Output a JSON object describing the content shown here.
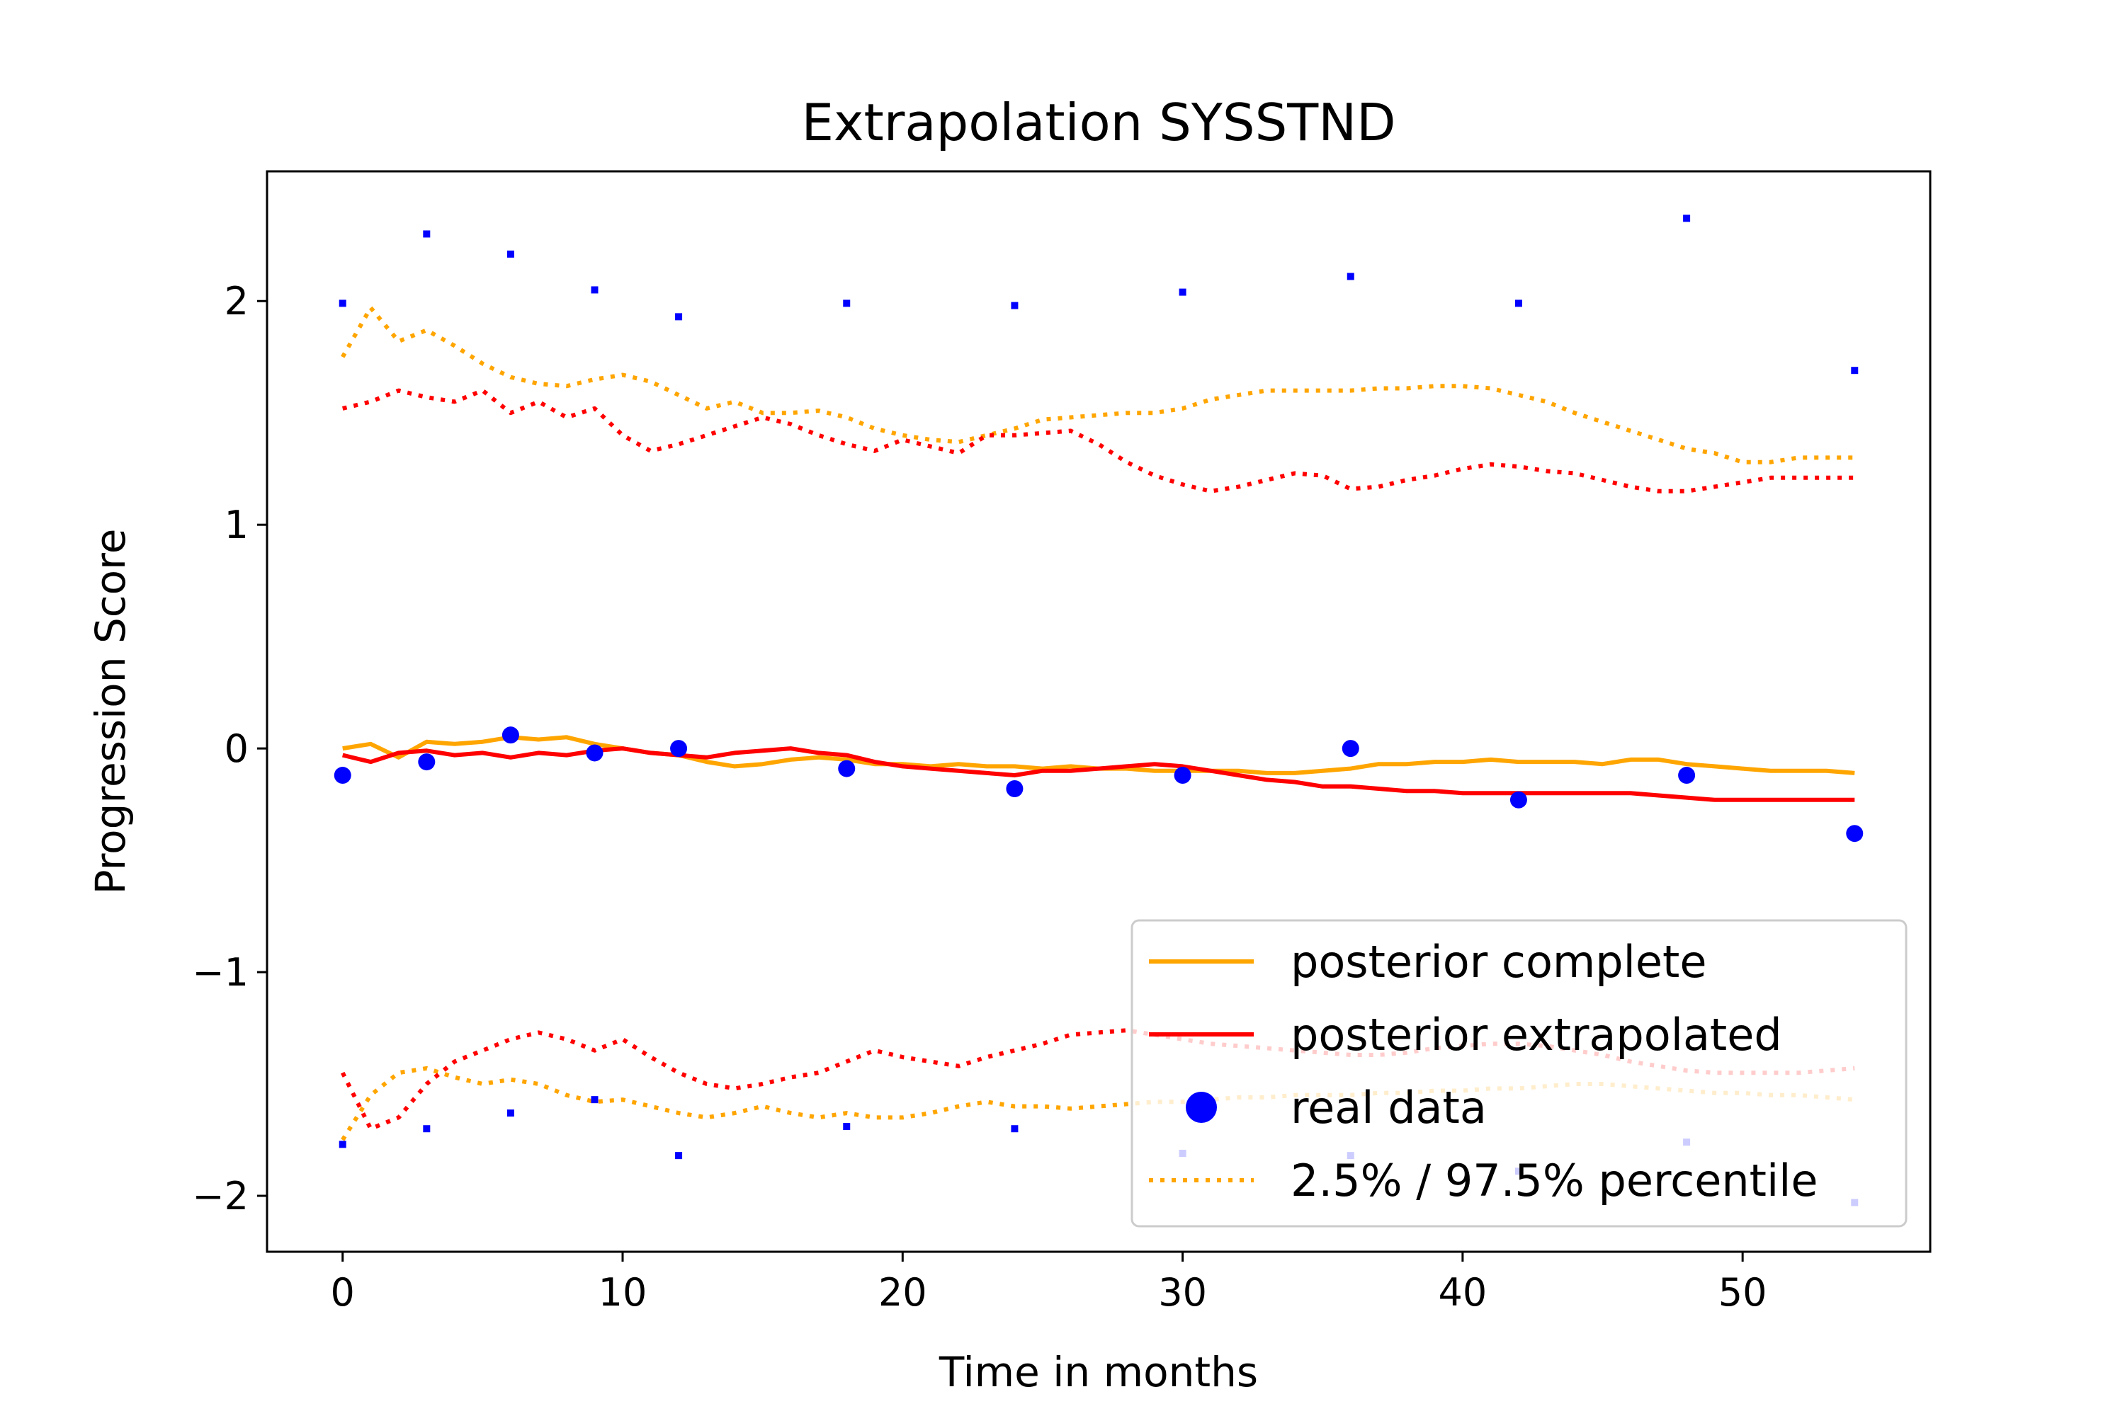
{
  "chart_data": {
    "type": "line",
    "title": "Extrapolation SYSSTND",
    "xlabel": "Time in months",
    "ylabel": "Progression Score",
    "xlim": [
      -2.7,
      56.7
    ],
    "ylim": [
      -2.25,
      2.58
    ],
    "xticks": [
      0,
      10,
      20,
      30,
      40,
      50
    ],
    "yticks": [
      -2,
      -1,
      0,
      1,
      2
    ],
    "ytick_labels": [
      "−2",
      "−1",
      "0",
      "1",
      "2"
    ],
    "grid": false,
    "legend_position": "lower-right",
    "legend": [
      {
        "label": "posterior complete",
        "marker": "solid-line",
        "color": "#ffa500"
      },
      {
        "label": "posterior extrapolated",
        "marker": "solid-line",
        "color": "#ff0000"
      },
      {
        "label": "real data",
        "marker": "dot",
        "color": "#0000ff"
      },
      {
        "label": "2.5% / 97.5% percentile",
        "marker": "dotted-line",
        "color": "#ffa500"
      }
    ],
    "series": [
      {
        "name": "posterior complete",
        "color": "#ffa500",
        "style": "solid",
        "x": [
          0,
          1,
          2,
          3,
          4,
          5,
          6,
          7,
          8,
          9,
          10,
          11,
          12,
          13,
          14,
          15,
          16,
          17,
          18,
          19,
          20,
          21,
          22,
          23,
          24,
          25,
          26,
          27,
          28,
          29,
          30,
          31,
          32,
          33,
          34,
          35,
          36,
          37,
          38,
          39,
          40,
          41,
          42,
          43,
          44,
          45,
          46,
          47,
          48,
          49,
          50,
          51,
          52,
          53,
          54
        ],
        "y": [
          0.0,
          0.02,
          -0.04,
          0.03,
          0.02,
          0.03,
          0.05,
          0.04,
          0.05,
          0.02,
          0.0,
          -0.02,
          -0.03,
          -0.06,
          -0.08,
          -0.07,
          -0.05,
          -0.04,
          -0.05,
          -0.07,
          -0.07,
          -0.08,
          -0.07,
          -0.08,
          -0.08,
          -0.09,
          -0.08,
          -0.09,
          -0.09,
          -0.1,
          -0.1,
          -0.1,
          -0.1,
          -0.11,
          -0.11,
          -0.1,
          -0.09,
          -0.07,
          -0.07,
          -0.06,
          -0.06,
          -0.05,
          -0.06,
          -0.06,
          -0.06,
          -0.07,
          -0.05,
          -0.05,
          -0.07,
          -0.08,
          -0.09,
          -0.1,
          -0.1,
          -0.1,
          -0.11
        ]
      },
      {
        "name": "posterior extrapolated",
        "color": "#ff0000",
        "style": "solid",
        "x": [
          0,
          1,
          2,
          3,
          4,
          5,
          6,
          7,
          8,
          9,
          10,
          11,
          12,
          13,
          14,
          15,
          16,
          17,
          18,
          19,
          20,
          21,
          22,
          23,
          24,
          25,
          26,
          27,
          28,
          29,
          30,
          31,
          32,
          33,
          34,
          35,
          36,
          37,
          38,
          39,
          40,
          41,
          42,
          43,
          44,
          45,
          46,
          47,
          48,
          49,
          50,
          51,
          52,
          53,
          54
        ],
        "y": [
          -0.03,
          -0.06,
          -0.02,
          -0.01,
          -0.03,
          -0.02,
          -0.04,
          -0.02,
          -0.03,
          -0.01,
          0.0,
          -0.02,
          -0.03,
          -0.04,
          -0.02,
          -0.01,
          0.0,
          -0.02,
          -0.03,
          -0.06,
          -0.08,
          -0.09,
          -0.1,
          -0.11,
          -0.12,
          -0.1,
          -0.1,
          -0.09,
          -0.08,
          -0.07,
          -0.08,
          -0.1,
          -0.12,
          -0.14,
          -0.15,
          -0.17,
          -0.17,
          -0.18,
          -0.19,
          -0.19,
          -0.2,
          -0.2,
          -0.2,
          -0.2,
          -0.2,
          -0.2,
          -0.2,
          -0.21,
          -0.22,
          -0.23,
          -0.23,
          -0.23,
          -0.23,
          -0.23,
          -0.23
        ]
      },
      {
        "name": "",
        "color": "#ffa500",
        "style": "dotted",
        "x": [
          0,
          1,
          2,
          3,
          4,
          5,
          6,
          7,
          8,
          9,
          10,
          11,
          12,
          13,
          14,
          15,
          16,
          17,
          18,
          19,
          20,
          21,
          22,
          23,
          24,
          25,
          26,
          27,
          28,
          29,
          30,
          31,
          32,
          33,
          34,
          35,
          36,
          37,
          38,
          39,
          40,
          41,
          42,
          43,
          44,
          45,
          46,
          47,
          48,
          49,
          50,
          51,
          52,
          53,
          54
        ],
        "y": [
          1.75,
          1.97,
          1.82,
          1.87,
          1.8,
          1.72,
          1.66,
          1.63,
          1.62,
          1.65,
          1.67,
          1.64,
          1.58,
          1.52,
          1.55,
          1.5,
          1.5,
          1.51,
          1.48,
          1.43,
          1.4,
          1.38,
          1.37,
          1.4,
          1.43,
          1.47,
          1.48,
          1.49,
          1.5,
          1.5,
          1.52,
          1.56,
          1.58,
          1.6,
          1.6,
          1.6,
          1.6,
          1.61,
          1.61,
          1.62,
          1.62,
          1.61,
          1.58,
          1.55,
          1.5,
          1.46,
          1.42,
          1.38,
          1.34,
          1.32,
          1.28,
          1.28,
          1.3,
          1.3,
          1.3
        ]
      },
      {
        "name": "",
        "color": "#ff0000",
        "style": "dotted",
        "x": [
          0,
          1,
          2,
          3,
          4,
          5,
          6,
          7,
          8,
          9,
          10,
          11,
          12,
          13,
          14,
          15,
          16,
          17,
          18,
          19,
          20,
          21,
          22,
          23,
          24,
          25,
          26,
          27,
          28,
          29,
          30,
          31,
          32,
          33,
          34,
          35,
          36,
          37,
          38,
          39,
          40,
          41,
          42,
          43,
          44,
          45,
          46,
          47,
          48,
          49,
          50,
          51,
          52,
          53,
          54
        ],
        "y": [
          1.52,
          1.55,
          1.6,
          1.57,
          1.55,
          1.6,
          1.5,
          1.55,
          1.48,
          1.52,
          1.4,
          1.33,
          1.36,
          1.4,
          1.44,
          1.48,
          1.45,
          1.4,
          1.36,
          1.33,
          1.38,
          1.35,
          1.32,
          1.4,
          1.4,
          1.41,
          1.42,
          1.36,
          1.28,
          1.22,
          1.18,
          1.15,
          1.17,
          1.2,
          1.23,
          1.22,
          1.16,
          1.17,
          1.2,
          1.22,
          1.25,
          1.27,
          1.26,
          1.24,
          1.23,
          1.2,
          1.17,
          1.15,
          1.15,
          1.17,
          1.19,
          1.21,
          1.21,
          1.21,
          1.21
        ]
      },
      {
        "name": "",
        "color": "#ffa500",
        "style": "dotted",
        "x": [
          0,
          1,
          2,
          3,
          4,
          5,
          6,
          7,
          8,
          9,
          10,
          11,
          12,
          13,
          14,
          15,
          16,
          17,
          18,
          19,
          20,
          21,
          22,
          23,
          24,
          25,
          26,
          27,
          28,
          29,
          30,
          31,
          32,
          33,
          34,
          35,
          36,
          37,
          38,
          39,
          40,
          41,
          42,
          43,
          44,
          45,
          46,
          47,
          48,
          49,
          50,
          51,
          52,
          53,
          54
        ],
        "y": [
          -1.75,
          -1.55,
          -1.45,
          -1.43,
          -1.47,
          -1.5,
          -1.48,
          -1.5,
          -1.55,
          -1.58,
          -1.57,
          -1.6,
          -1.63,
          -1.65,
          -1.63,
          -1.6,
          -1.63,
          -1.65,
          -1.63,
          -1.65,
          -1.65,
          -1.63,
          -1.6,
          -1.58,
          -1.6,
          -1.6,
          -1.61,
          -1.6,
          -1.59,
          -1.58,
          -1.58,
          -1.57,
          -1.56,
          -1.56,
          -1.55,
          -1.55,
          -1.55,
          -1.54,
          -1.54,
          -1.53,
          -1.53,
          -1.52,
          -1.52,
          -1.51,
          -1.5,
          -1.5,
          -1.51,
          -1.52,
          -1.53,
          -1.54,
          -1.54,
          -1.55,
          -1.55,
          -1.56,
          -1.57
        ]
      },
      {
        "name": "",
        "color": "#ff0000",
        "style": "dotted",
        "x": [
          0,
          1,
          2,
          3,
          4,
          5,
          6,
          7,
          8,
          9,
          10,
          11,
          12,
          13,
          14,
          15,
          16,
          17,
          18,
          19,
          20,
          21,
          22,
          23,
          24,
          25,
          26,
          27,
          28,
          29,
          30,
          31,
          32,
          33,
          34,
          35,
          36,
          37,
          38,
          39,
          40,
          41,
          42,
          43,
          44,
          45,
          46,
          47,
          48,
          49,
          50,
          51,
          52,
          53,
          54
        ],
        "y": [
          -1.45,
          -1.7,
          -1.65,
          -1.5,
          -1.4,
          -1.35,
          -1.3,
          -1.27,
          -1.3,
          -1.35,
          -1.3,
          -1.38,
          -1.45,
          -1.5,
          -1.52,
          -1.5,
          -1.47,
          -1.45,
          -1.4,
          -1.35,
          -1.38,
          -1.4,
          -1.42,
          -1.38,
          -1.35,
          -1.32,
          -1.28,
          -1.27,
          -1.26,
          -1.28,
          -1.3,
          -1.32,
          -1.33,
          -1.34,
          -1.35,
          -1.36,
          -1.37,
          -1.37,
          -1.36,
          -1.34,
          -1.33,
          -1.32,
          -1.32,
          -1.33,
          -1.35,
          -1.37,
          -1.4,
          -1.42,
          -1.44,
          -1.45,
          -1.45,
          -1.45,
          -1.45,
          -1.44,
          -1.43
        ]
      }
    ],
    "real_data": {
      "name": "real data",
      "color": "#0000ff",
      "x": [
        0,
        3,
        6,
        9,
        12,
        18,
        24,
        30,
        36,
        42,
        48,
        54
      ],
      "y": [
        -0.12,
        -0.06,
        0.06,
        -0.02,
        0.0,
        -0.09,
        -0.18,
        -0.12,
        0.0,
        -0.23,
        -0.12,
        -0.38
      ],
      "upper": [
        1.99,
        2.3,
        2.21,
        2.05,
        1.93,
        1.99,
        1.98,
        2.04,
        2.11,
        1.99,
        2.37,
        1.69
      ],
      "lower": [
        -1.77,
        -1.7,
        -1.63,
        -1.57,
        -1.82,
        -1.69,
        -1.7,
        -1.81,
        -1.82,
        -1.89,
        -1.76,
        -2.03
      ]
    }
  }
}
